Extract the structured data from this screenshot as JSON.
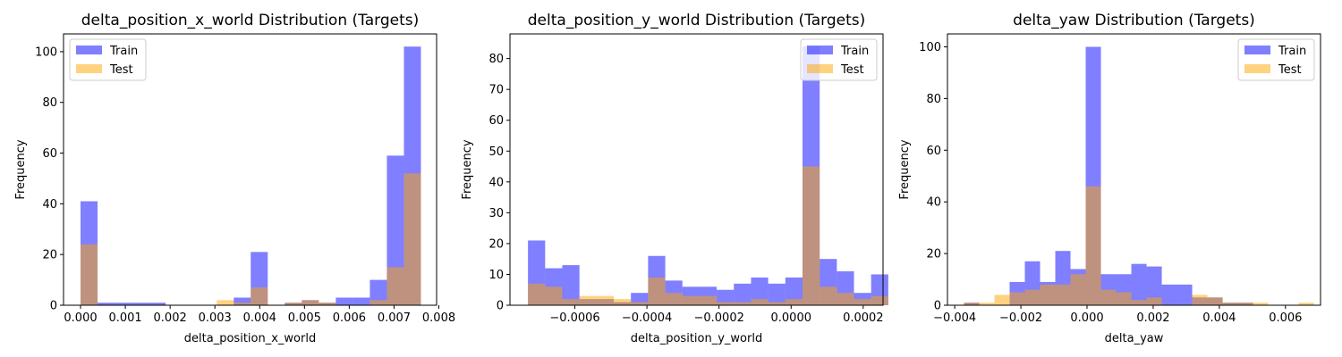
{
  "colors": {
    "train": "#0000ff",
    "test": "#ffa500",
    "alpha": 0.5
  },
  "chart_data": [
    {
      "type": "histogram",
      "title": "delta_position_x_world Distribution (Targets)",
      "xlabel": "delta_position_x_world",
      "ylabel": "Frequency",
      "xlim": [
        -0.00038,
        0.00795
      ],
      "ylim": [
        0,
        107
      ],
      "xticks": [
        0.0,
        0.001,
        0.002,
        0.003,
        0.004,
        0.005,
        0.006,
        0.007,
        0.008
      ],
      "xtick_labels": [
        "0.000",
        "0.001",
        "0.002",
        "0.003",
        "0.004",
        "0.005",
        "0.006",
        "0.007",
        "0.008"
      ],
      "yticks": [
        0,
        20,
        40,
        60,
        80,
        100
      ],
      "yticks_labels": [
        "0",
        "20",
        "40",
        "60",
        "80",
        "100"
      ],
      "legend_position": "top-left",
      "series": [
        {
          "name": "Train",
          "bins_start": 0.0,
          "bin_width": 0.00038,
          "counts": [
            41,
            1,
            1,
            1,
            1,
            0,
            0,
            0,
            0,
            3,
            21,
            0,
            1,
            2,
            1,
            3,
            3,
            10,
            59,
            102
          ]
        },
        {
          "name": "Test",
          "bins_start": 0.0,
          "bin_width": 0.00038,
          "counts": [
            24,
            0,
            0,
            0,
            0,
            0,
            0,
            0,
            2,
            1,
            7,
            0,
            1,
            2,
            1,
            0,
            0,
            2,
            15,
            52
          ]
        }
      ]
    },
    {
      "type": "histogram",
      "title": "delta_position_y_world Distribution (Targets)",
      "xlabel": "delta_position_y_world",
      "ylabel": "Frequency",
      "xlim": [
        -0.00078,
        0.000255
      ],
      "ylim": [
        0,
        88
      ],
      "xticks": [
        -0.0006,
        -0.0004,
        -0.0002,
        0.0,
        0.0002
      ],
      "xtick_labels": [
        "−0.0006",
        "−0.0004",
        "−0.0002",
        "0.0000",
        "0.0002"
      ],
      "yticks": [
        0,
        10,
        20,
        30,
        40,
        50,
        60,
        70,
        80
      ],
      "yticks_labels": [
        "0",
        "10",
        "20",
        "30",
        "40",
        "50",
        "60",
        "70",
        "80"
      ],
      "legend_position": "top-right",
      "series": [
        {
          "name": "Train",
          "bins_start": -0.00073,
          "bin_width": 4.76e-05,
          "counts": [
            21,
            12,
            13,
            2,
            2,
            1,
            4,
            16,
            8,
            6,
            6,
            5,
            7,
            9,
            7,
            9,
            84,
            15,
            11,
            4,
            10
          ]
        },
        {
          "name": "Test",
          "bins_start": -0.00073,
          "bin_width": 4.76e-05,
          "counts": [
            7,
            6,
            2,
            3,
            3,
            2,
            1,
            9,
            4,
            3,
            3,
            1,
            1,
            2,
            1,
            2,
            45,
            6,
            4,
            2,
            3
          ]
        }
      ]
    },
    {
      "type": "histogram",
      "title": "delta_yaw Distribution (Targets)",
      "xlabel": "delta_yaw",
      "ylabel": "Frequency",
      "xlim": [
        -0.00422,
        0.00706
      ],
      "ylim": [
        0,
        105
      ],
      "xticks": [
        -0.004,
        -0.002,
        0.0,
        0.002,
        0.004,
        0.006
      ],
      "xtick_labels": [
        "−0.004",
        "−0.002",
        "0.000",
        "0.002",
        "0.004",
        "0.006"
      ],
      "yticks": [
        0,
        20,
        40,
        60,
        80,
        100
      ],
      "yticks_labels": [
        "0",
        "20",
        "40",
        "60",
        "80",
        "100"
      ],
      "legend_position": "top-right",
      "series": [
        {
          "name": "Train",
          "bins_start": -0.00372,
          "bin_width": 0.00046,
          "counts": [
            1,
            0,
            0,
            9,
            17,
            9,
            21,
            14,
            100,
            12,
            12,
            16,
            15,
            8,
            8,
            3,
            3,
            1,
            1,
            0,
            0,
            0,
            0
          ]
        },
        {
          "name": "Test",
          "bins_start": -0.00372,
          "bin_width": 0.00046,
          "counts": [
            1,
            1,
            4,
            5,
            6,
            8,
            8,
            12,
            46,
            6,
            5,
            2,
            3,
            0,
            0,
            4,
            3,
            1,
            1,
            1,
            0,
            0,
            1
          ]
        }
      ]
    }
  ]
}
